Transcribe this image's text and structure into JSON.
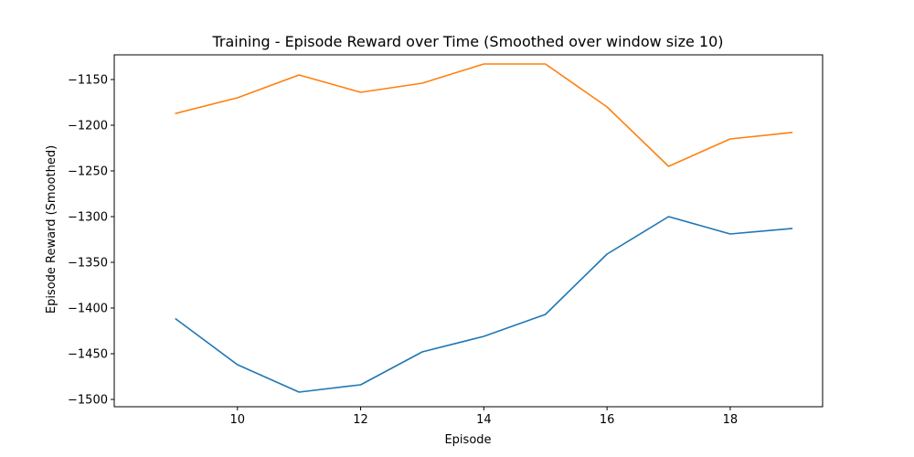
{
  "chart_data": {
    "type": "line",
    "title": "Training - Episode Reward over Time (Smoothed over window size 10)",
    "xlabel": "Episode",
    "ylabel": "Episode Reward (Smoothed)",
    "xlim": [
      8.0,
      19.5
    ],
    "ylim": [
      -1508,
      -1123
    ],
    "x_ticks": [
      10,
      12,
      14,
      16,
      18
    ],
    "x_tick_labels": [
      "10",
      "12",
      "14",
      "16",
      "18"
    ],
    "y_ticks": [
      -1150,
      -1200,
      -1250,
      -1300,
      -1350,
      -1400,
      -1450,
      -1500
    ],
    "y_tick_labels": [
      "−1150",
      "−1200",
      "−1250",
      "−1300",
      "−1350",
      "−1400",
      "−1450",
      "−1500"
    ],
    "grid": false,
    "legend": false,
    "x": [
      9,
      10,
      11,
      12,
      13,
      14,
      15,
      16,
      17,
      18,
      19
    ],
    "series": [
      {
        "color": "#1f77b4",
        "values": [
          -1412,
          -1462,
          -1492,
          -1484,
          -1448,
          -1431,
          -1407,
          -1341,
          -1300,
          -1319,
          -1313
        ]
      },
      {
        "color": "#ff7f0e",
        "values": [
          -1187,
          -1170,
          -1145,
          -1164,
          -1154,
          -1133,
          -1133,
          -1180,
          -1245,
          -1215,
          -1208
        ]
      }
    ]
  }
}
